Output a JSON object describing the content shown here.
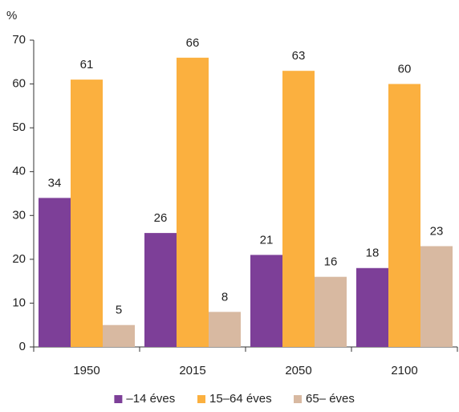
{
  "chart_data": {
    "type": "bar",
    "y_label": "%",
    "categories": [
      "1950",
      "2015",
      "2050",
      "2100"
    ],
    "series": [
      {
        "name": "–14 éves",
        "color": "#7d3f98",
        "values": [
          34,
          26,
          21,
          18
        ]
      },
      {
        "name": "15–64 éves",
        "color": "#fbb03f",
        "values": [
          61,
          66,
          63,
          60
        ]
      },
      {
        "name": "65– éves",
        "color": "#d8b9a1",
        "values": [
          5,
          8,
          16,
          23
        ]
      }
    ],
    "ylim": [
      0,
      70
    ],
    "yticks": [
      0,
      10,
      20,
      30,
      40,
      50,
      60,
      70
    ],
    "grid": false,
    "legend": "bottom"
  }
}
